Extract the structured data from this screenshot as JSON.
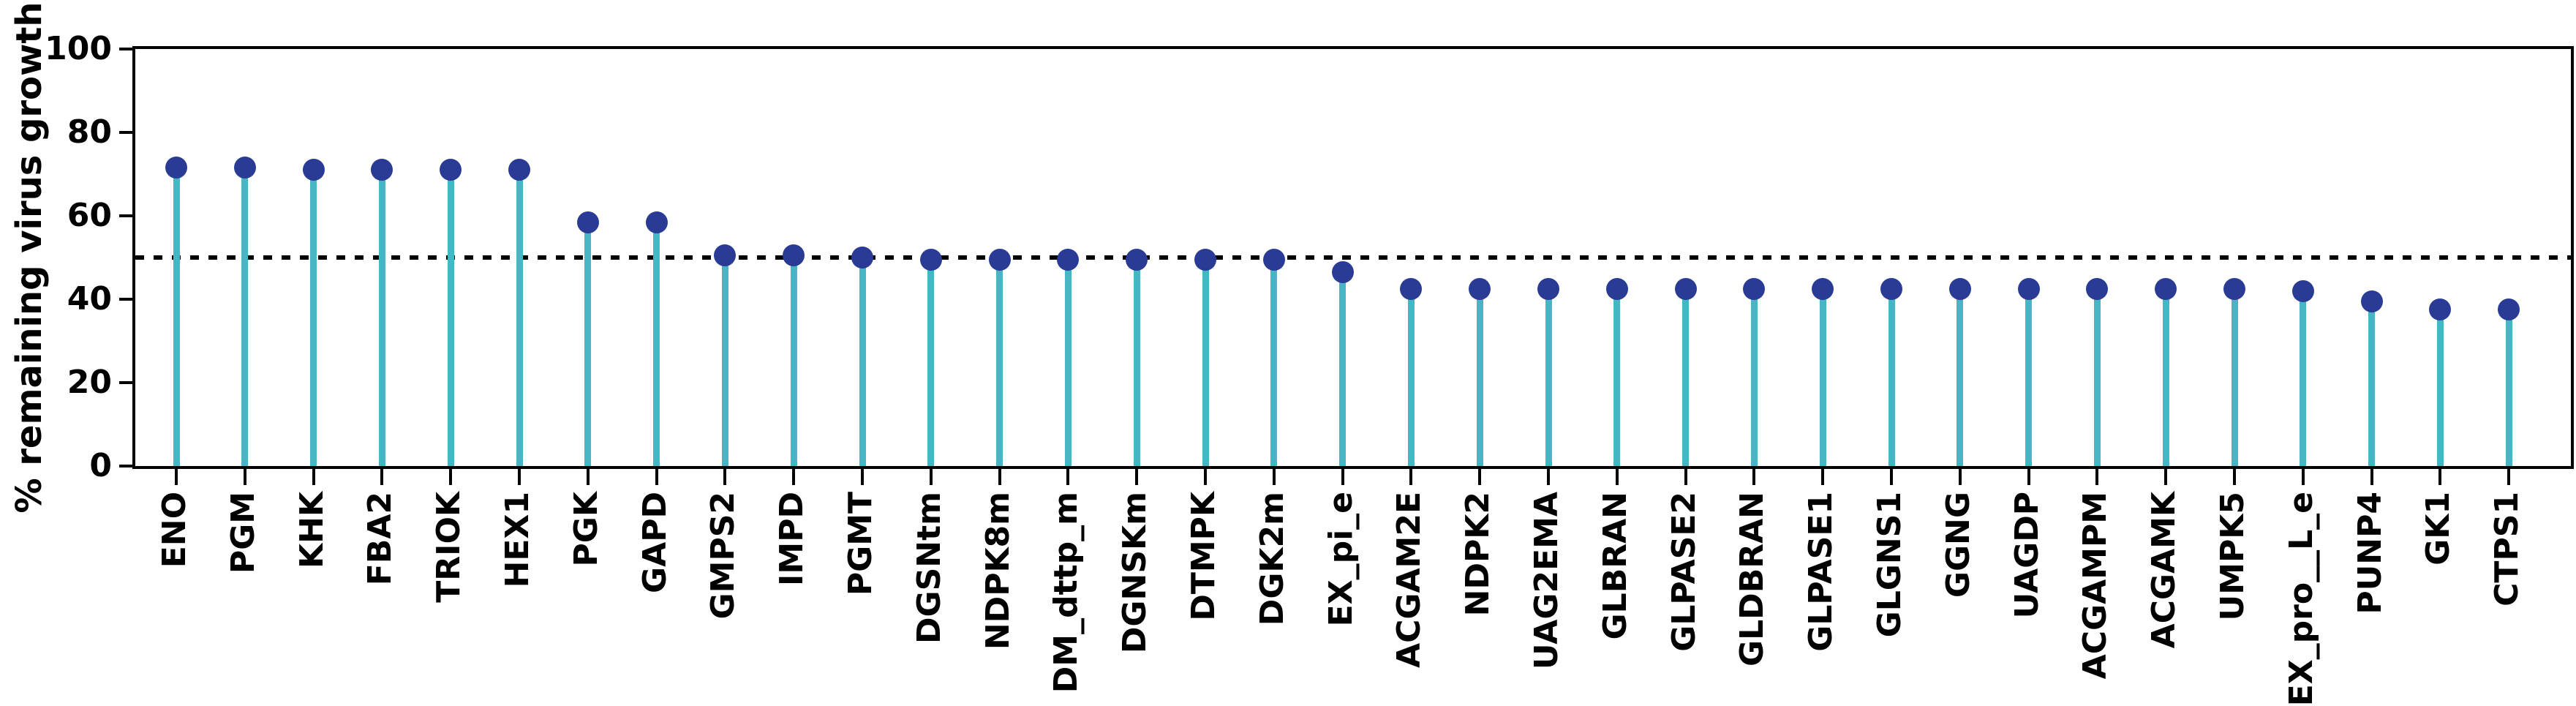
{
  "chart_data": {
    "type": "stem",
    "title": "",
    "xlabel": "",
    "ylabel": "% remaining virus growth",
    "ylim": [
      0,
      100
    ],
    "yticks": [
      0,
      20,
      40,
      60,
      80,
      100
    ],
    "grid": false,
    "legend": null,
    "threshold_line": {
      "value": 50,
      "style": "dotted",
      "color": "#000000"
    },
    "stem_color": "#46b5c4",
    "marker_color": "#2a3b96",
    "axis_color": "#000000",
    "categories": [
      "ENO",
      "PGM",
      "KHK",
      "FBA2",
      "TRIOK",
      "HEX1",
      "PGK",
      "GAPD",
      "GMPS2",
      "IMPD",
      "PGMT",
      "DGSNtm",
      "NDPK8m",
      "DM_dttp_m",
      "DGNSKm",
      "DTMPK",
      "DGK2m",
      "EX_pi_e",
      "ACGAM2E",
      "NDPK2",
      "UAG2EMA",
      "GLBRAN",
      "GLPASE2",
      "GLDBRAN",
      "GLPASE1",
      "GLGNS1",
      "GGNG",
      "UAGDP",
      "ACGAMPM",
      "ACGAMK",
      "UMPK5",
      "EX_pro__L_e",
      "PUNP4",
      "GK1",
      "CTPS1"
    ],
    "values": [
      71.5,
      71.5,
      71,
      71,
      71,
      71,
      58.5,
      58.5,
      50.5,
      50.5,
      50,
      49.5,
      49.5,
      49.5,
      49.5,
      49.5,
      49.5,
      46.5,
      42.5,
      42.5,
      42.5,
      42.5,
      42.5,
      42.5,
      42.5,
      42.5,
      42.5,
      42.5,
      42.5,
      42.5,
      42.5,
      42,
      39.5,
      37.5,
      37.5
    ]
  }
}
